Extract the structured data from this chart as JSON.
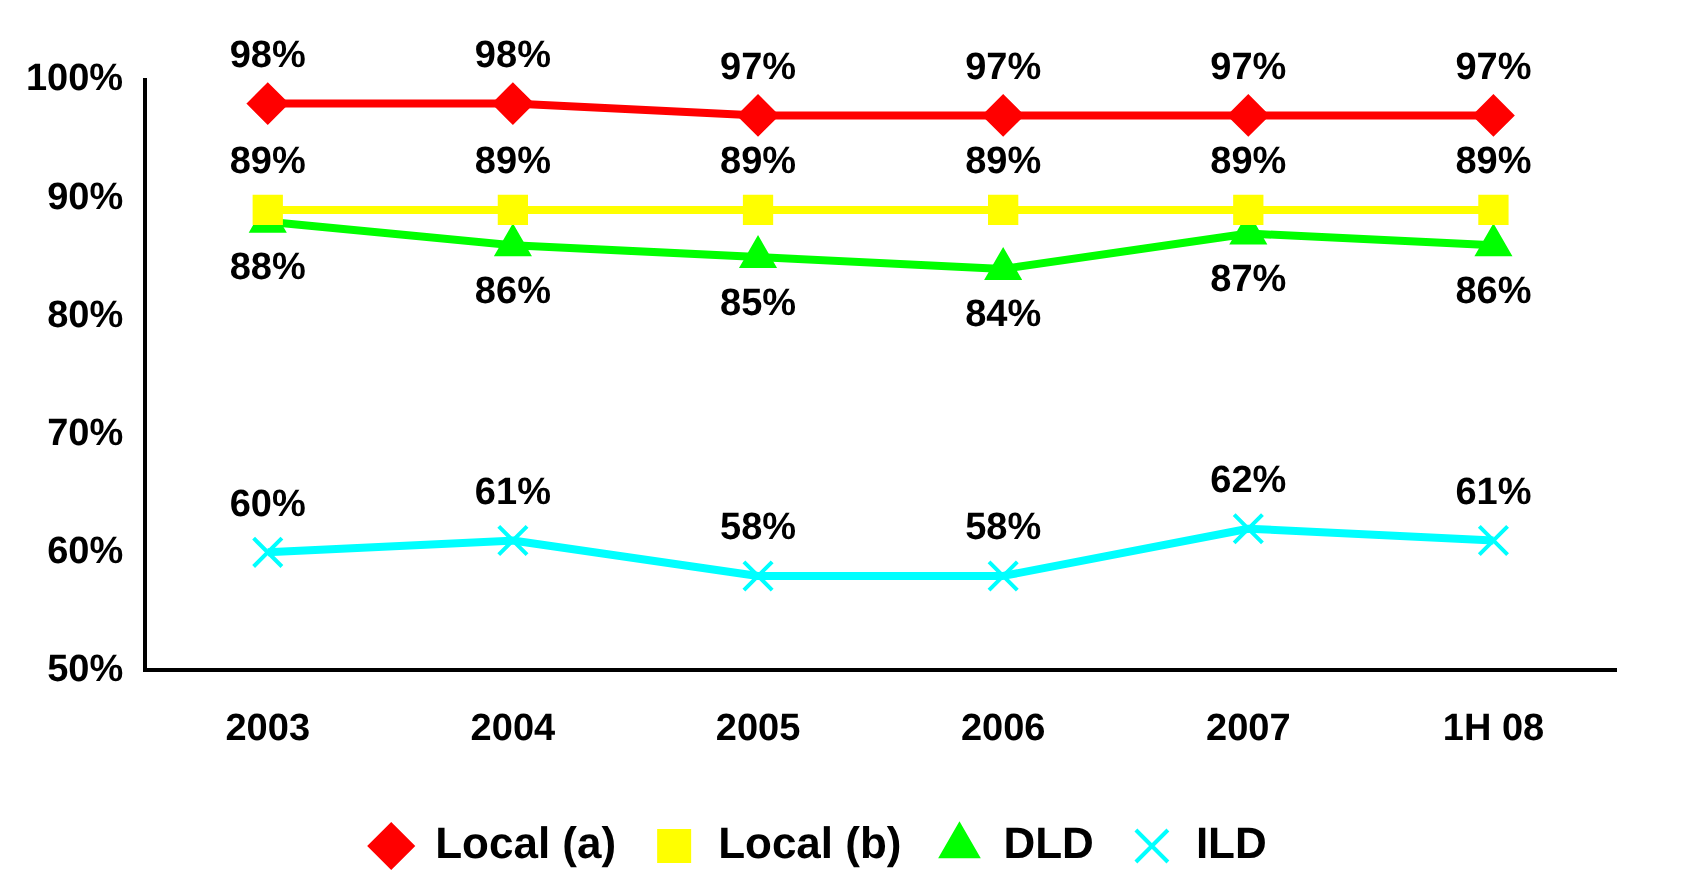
{
  "chart_data": {
    "type": "line",
    "categories": [
      "2003",
      "2004",
      "2005",
      "2006",
      "2007",
      "1H 08"
    ],
    "series": [
      {
        "name": "Local (a)",
        "color": "#ff0000",
        "marker": "diamond",
        "values": [
          98,
          98,
          97,
          97,
          97,
          97
        ],
        "value_labels": [
          "98%",
          "98%",
          "97%",
          "97%",
          "97%",
          "97%"
        ]
      },
      {
        "name": "Local (b)",
        "color": "#ffff00",
        "marker": "square",
        "values": [
          89,
          89,
          89,
          89,
          89,
          89
        ],
        "value_labels": [
          "89%",
          "89%",
          "89%",
          "89%",
          "89%",
          "89%"
        ]
      },
      {
        "name": "DLD",
        "color": "#00ff00",
        "marker": "triangle",
        "values": [
          88,
          86,
          85,
          84,
          87,
          86
        ],
        "value_labels": [
          "88%",
          "86%",
          "85%",
          "84%",
          "87%",
          "86%"
        ]
      },
      {
        "name": "ILD",
        "color": "#00ffff",
        "marker": "cross",
        "values": [
          60,
          61,
          58,
          58,
          62,
          61
        ],
        "value_labels": [
          "60%",
          "61%",
          "58%",
          "58%",
          "62%",
          "61%"
        ]
      }
    ],
    "ylim": [
      50,
      100
    ],
    "yticks": [
      {
        "value": 50,
        "label": "50%"
      },
      {
        "value": 60,
        "label": "60%"
      },
      {
        "value": 70,
        "label": "70%"
      },
      {
        "value": 80,
        "label": "80%"
      },
      {
        "value": 90,
        "label": "90%"
      },
      {
        "value": 100,
        "label": "100%"
      }
    ],
    "grid": false,
    "legend": "bottom",
    "line_style": "solid"
  }
}
